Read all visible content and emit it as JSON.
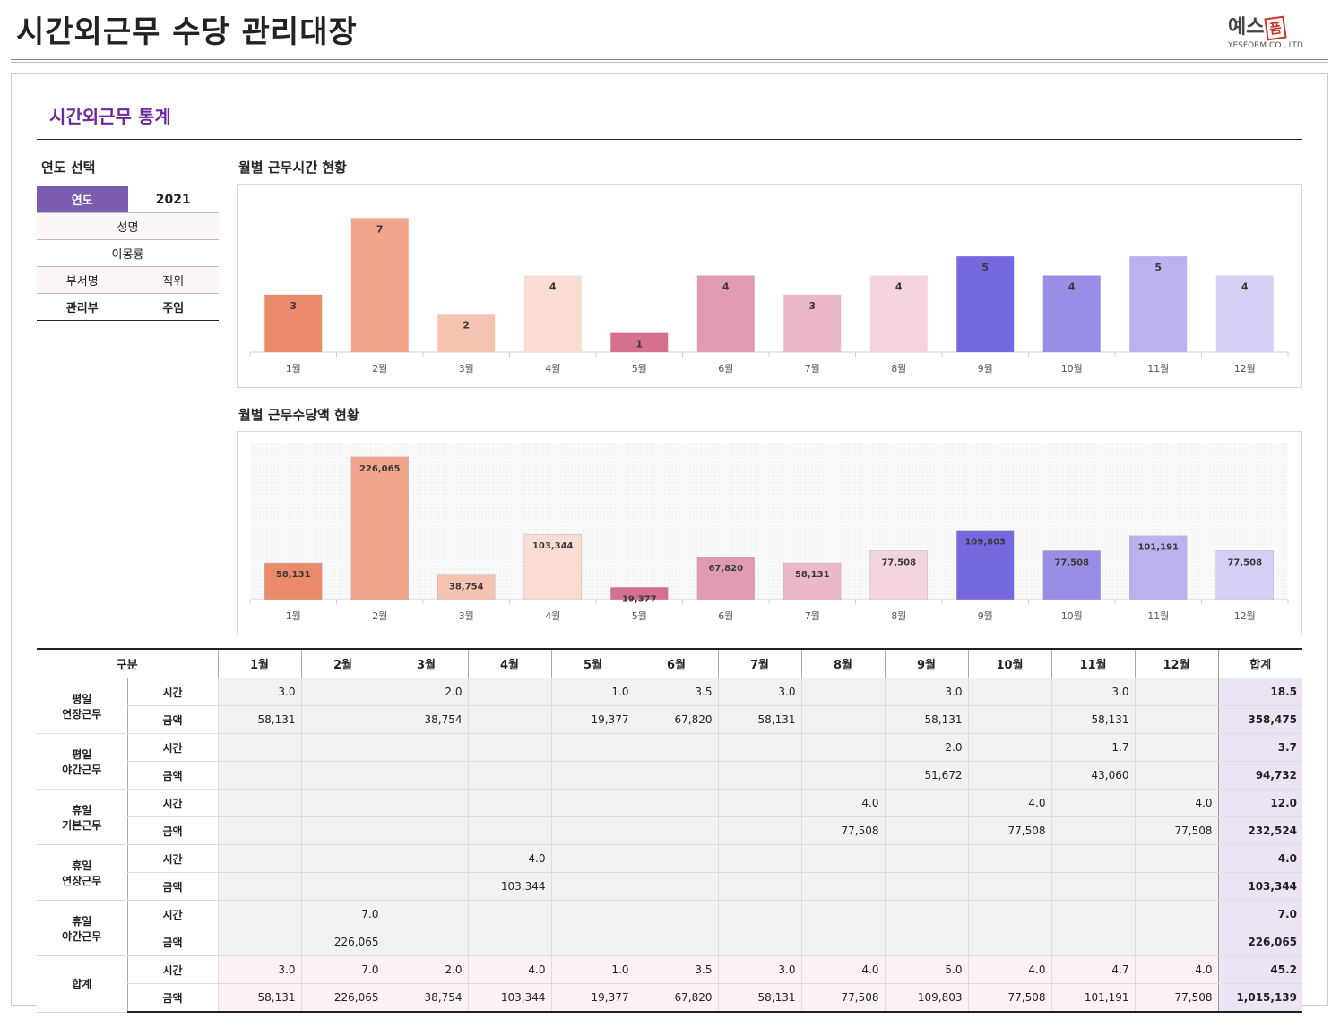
{
  "header": {
    "title": "시간외근무 수당 관리대장",
    "logo_text": "예스",
    "logo_mark": "폼",
    "logo_sub": "YESFORM CO., LTD."
  },
  "section": {
    "title": "시간외근무 통계"
  },
  "year_select": {
    "heading": "연도 선택",
    "year_label": "연도",
    "year_value": "2021",
    "name_label": "성명",
    "name_value": "이몽룡",
    "dept_label": "부서명",
    "position_label": "직위",
    "dept_value": "관리부",
    "position_value": "주임"
  },
  "chart_data": [
    {
      "type": "bar",
      "title": "월별 근무시간 현황",
      "categories": [
        "1월",
        "2월",
        "3월",
        "4월",
        "5월",
        "6월",
        "7월",
        "8월",
        "9월",
        "10월",
        "11월",
        "12월"
      ],
      "values": [
        3,
        7,
        2,
        4,
        1,
        4,
        3,
        4,
        5,
        4,
        5,
        4
      ],
      "labels": [
        "3",
        "7",
        "2",
        "4",
        "1",
        "4",
        "3",
        "4",
        "5",
        "4",
        "5",
        "4"
      ],
      "colors": [
        "#ec8a6c",
        "#f0a58c",
        "#f5c3b2",
        "#f9dcd2",
        "#d5708f",
        "#e19bb0",
        "#ebb8c8",
        "#f3d4de",
        "#7569e0",
        "#988ee6",
        "#b9b2ee",
        "#d5d1f6"
      ],
      "ylim": [
        0,
        8
      ]
    },
    {
      "type": "bar",
      "title": "월별 근무수당액 현황",
      "categories": [
        "1월",
        "2월",
        "3월",
        "4월",
        "5월",
        "6월",
        "7월",
        "8월",
        "9월",
        "10월",
        "11월",
        "12월"
      ],
      "values": [
        58131,
        226065,
        38754,
        103344,
        19377,
        67820,
        58131,
        77508,
        109803,
        77508,
        101191,
        77508
      ],
      "labels": [
        "58,131",
        "226,065",
        "38,754",
        "103,344",
        "19,377",
        "67,820",
        "58,131",
        "77,508",
        "109,803",
        "77,508",
        "101,191",
        "77,508"
      ],
      "colors": [
        "#ec8a6c",
        "#f0a58c",
        "#f5c3b2",
        "#f9dcd2",
        "#d5708f",
        "#e19bb0",
        "#ebb8c8",
        "#f3d4de",
        "#7569e0",
        "#988ee6",
        "#b9b2ee",
        "#d5d1f6"
      ],
      "ylim": [
        0,
        240000
      ]
    }
  ],
  "table": {
    "header_group": "구분",
    "months": [
      "1월",
      "2월",
      "3월",
      "4월",
      "5월",
      "6월",
      "7월",
      "8월",
      "9월",
      "10월",
      "11월",
      "12월"
    ],
    "total_label": "합계",
    "kind_time": "시간",
    "kind_amount": "금액",
    "groups": [
      {
        "line1": "평일",
        "line2": "연장근무",
        "time": [
          "3.0",
          "",
          "2.0",
          "",
          "1.0",
          "3.5",
          "3.0",
          "",
          "3.0",
          "",
          "3.0",
          ""
        ],
        "time_total": "18.5",
        "amount": [
          "58,131",
          "",
          "38,754",
          "",
          "19,377",
          "67,820",
          "58,131",
          "",
          "58,131",
          "",
          "58,131",
          ""
        ],
        "amount_total": "358,475"
      },
      {
        "line1": "평일",
        "line2": "야간근무",
        "time": [
          "",
          "",
          "",
          "",
          "",
          "",
          "",
          "",
          "2.0",
          "",
          "1.7",
          ""
        ],
        "time_total": "3.7",
        "amount": [
          "",
          "",
          "",
          "",
          "",
          "",
          "",
          "",
          "51,672",
          "",
          "43,060",
          ""
        ],
        "amount_total": "94,732"
      },
      {
        "line1": "휴일",
        "line2": "기본근무",
        "time": [
          "",
          "",
          "",
          "",
          "",
          "",
          "",
          "4.0",
          "",
          "4.0",
          "",
          "4.0"
        ],
        "time_total": "12.0",
        "amount": [
          "",
          "",
          "",
          "",
          "",
          "",
          "",
          "77,508",
          "",
          "77,508",
          "",
          "77,508"
        ],
        "amount_total": "232,524"
      },
      {
        "line1": "휴일",
        "line2": "연장근무",
        "time": [
          "",
          "",
          "",
          "4.0",
          "",
          "",
          "",
          "",
          "",
          "",
          "",
          ""
        ],
        "time_total": "4.0",
        "amount": [
          "",
          "",
          "",
          "103,344",
          "",
          "",
          "",
          "",
          "",
          "",
          "",
          ""
        ],
        "amount_total": "103,344"
      },
      {
        "line1": "휴일",
        "line2": "야간근무",
        "time": [
          "",
          "7.0",
          "",
          "",
          "",
          "",
          "",
          "",
          "",
          "",
          "",
          ""
        ],
        "time_total": "7.0",
        "amount": [
          "",
          "226,065",
          "",
          "",
          "",
          "",
          "",
          "",
          "",
          "",
          "",
          ""
        ],
        "amount_total": "226,065"
      }
    ],
    "sum": {
      "line1": "합계",
      "time": [
        "3.0",
        "7.0",
        "2.0",
        "4.0",
        "1.0",
        "3.5",
        "3.0",
        "4.0",
        "5.0",
        "4.0",
        "4.7",
        "4.0"
      ],
      "time_total": "45.2",
      "amount": [
        "58,131",
        "226,065",
        "38,754",
        "103,344",
        "19,377",
        "67,820",
        "58,131",
        "77,508",
        "109,803",
        "77,508",
        "101,191",
        "77,508"
      ],
      "amount_total": "1,015,139"
    }
  }
}
